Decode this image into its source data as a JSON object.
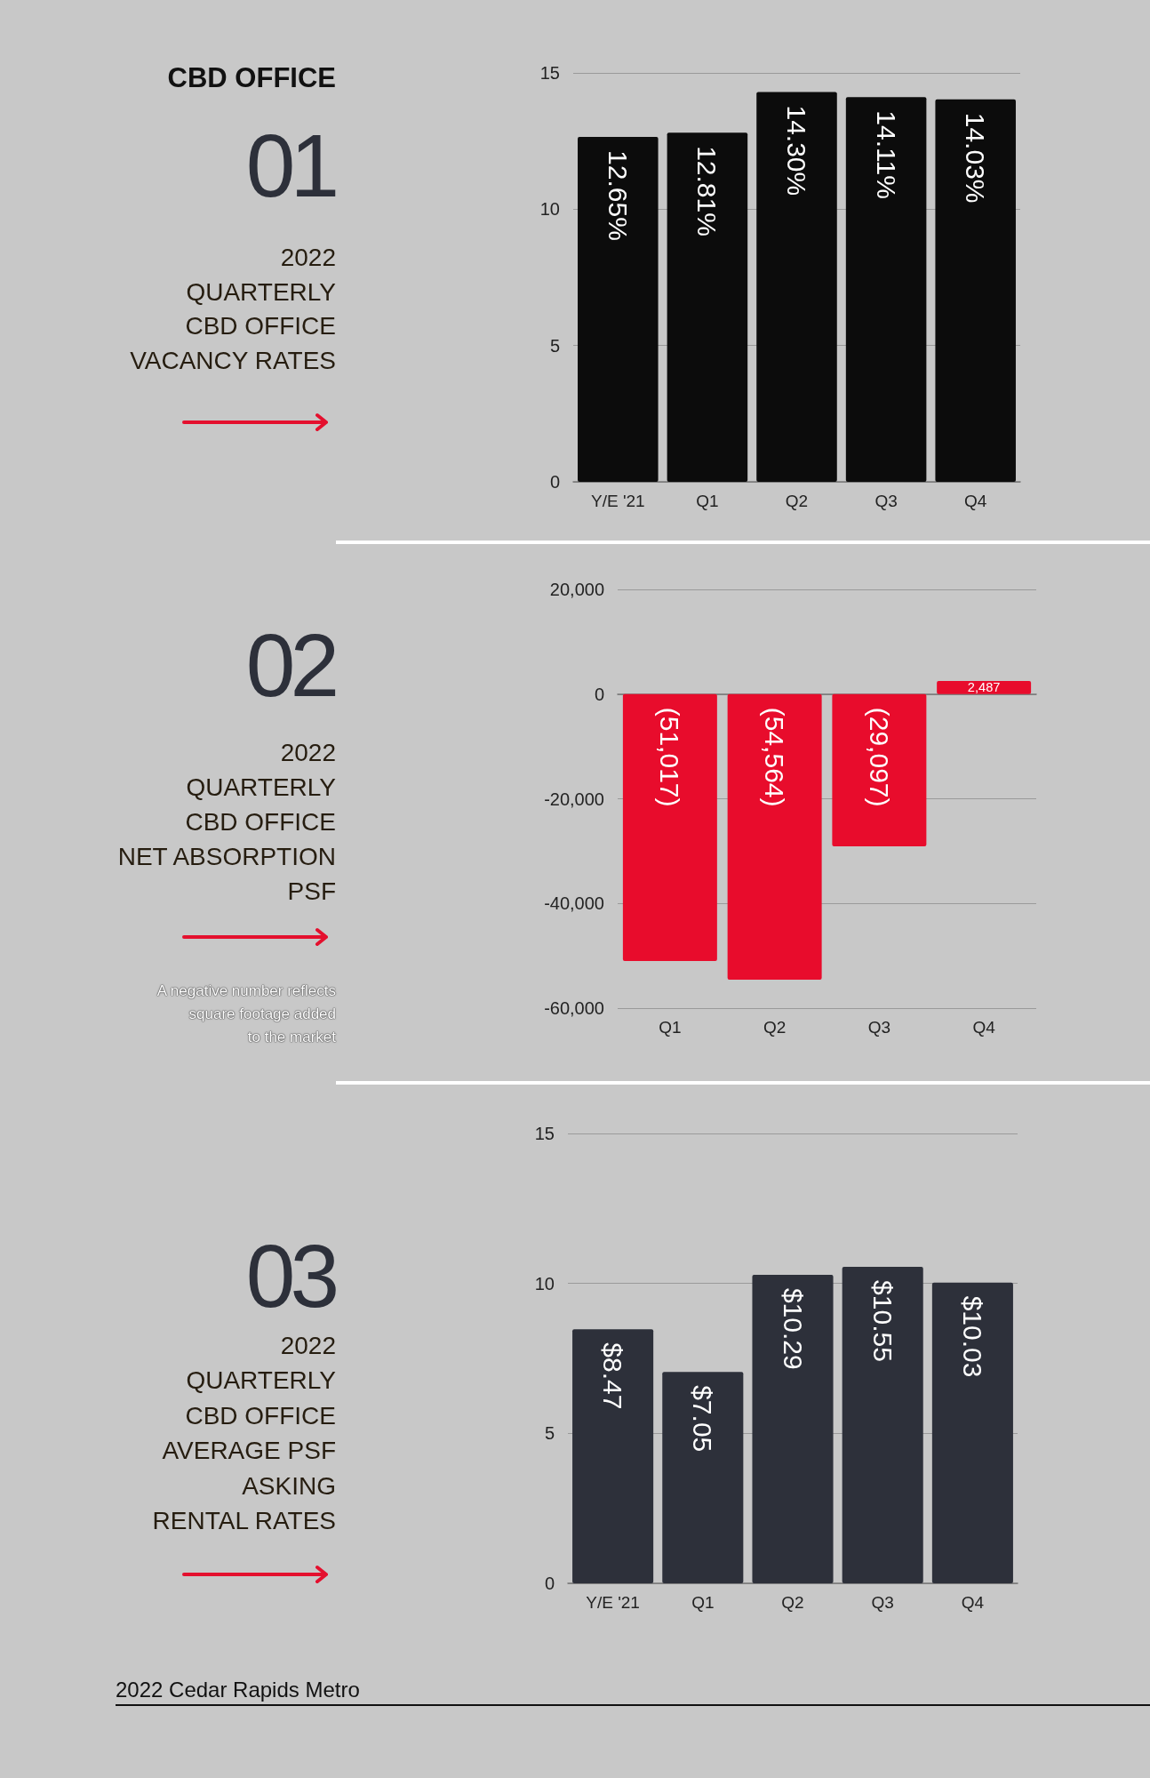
{
  "chart_data": [
    {
      "type": "other",
      "title": "2022\nQUARTERLY\nCBD OFFICE\nVACANCY RATES",
      "subtitle": "01",
      "annotations": [
        "CBD OFFICE"
      ]
    },
    {
      "type": "bar",
      "categories": [
        "Y/E '21",
        "Q1",
        "Q2",
        "Q3",
        "Q4"
      ],
      "values": [
        12.65,
        12.81,
        14.3,
        14.11,
        14.03
      ],
      "value_labels": [
        "12.65%",
        "12.81%",
        "14.30%",
        "14.11%",
        "14.03%"
      ],
      "color": "#0c0c0c",
      "ylim": [
        0,
        15
      ],
      "yticks": [
        0,
        5,
        10,
        15
      ],
      "grid": "y"
    },
    {
      "type": "other",
      "title": "2022\nQUARTERLY\nCBD OFFICE\nNET ABSORPTION\nPSF",
      "subtitle": "02",
      "annotations": [
        "A negative number reflects\nsquare footage added \nto the market"
      ]
    },
    {
      "type": "bar",
      "categories": [
        "Q1",
        "Q2",
        "Q3",
        "Q4"
      ],
      "values": [
        -51017,
        -54564,
        -29097,
        2487
      ],
      "value_labels": [
        "(51,017)",
        "(54,564)",
        "(29,097)",
        "2,487"
      ],
      "color": "#e80c2c",
      "ylim": [
        -60000,
        20000
      ],
      "yticks": [
        {
          "value": -60000,
          "label": "-60,000"
        },
        {
          "value": -40000,
          "label": "-40,000"
        },
        {
          "value": -20000,
          "label": "-20,000"
        },
        0,
        {
          "value": 20000,
          "label": "20,000"
        }
      ],
      "grid": "y"
    },
    {
      "type": "other",
      "title": "2022\nQUARTERLY\nCBD OFFICE\nAVERAGE PSF\nASKING\nRENTAL RATES",
      "subtitle": "03",
      "annotations": [
        "2022 Cedar Rapids Metro"
      ]
    },
    {
      "type": "bar",
      "categories": [
        "Y/E '21",
        "Q1",
        "Q2",
        "Q3",
        "Q4"
      ],
      "values": [
        8.47,
        7.05,
        10.29,
        10.55,
        10.03
      ],
      "value_labels": [
        "$8.47",
        "$7.05",
        "$10.29",
        "$10.55",
        "$10.03"
      ],
      "color": "#2d303a",
      "ylim": [
        0,
        15
      ],
      "yticks": [
        0,
        5,
        10,
        15
      ],
      "grid": "y"
    }
  ]
}
